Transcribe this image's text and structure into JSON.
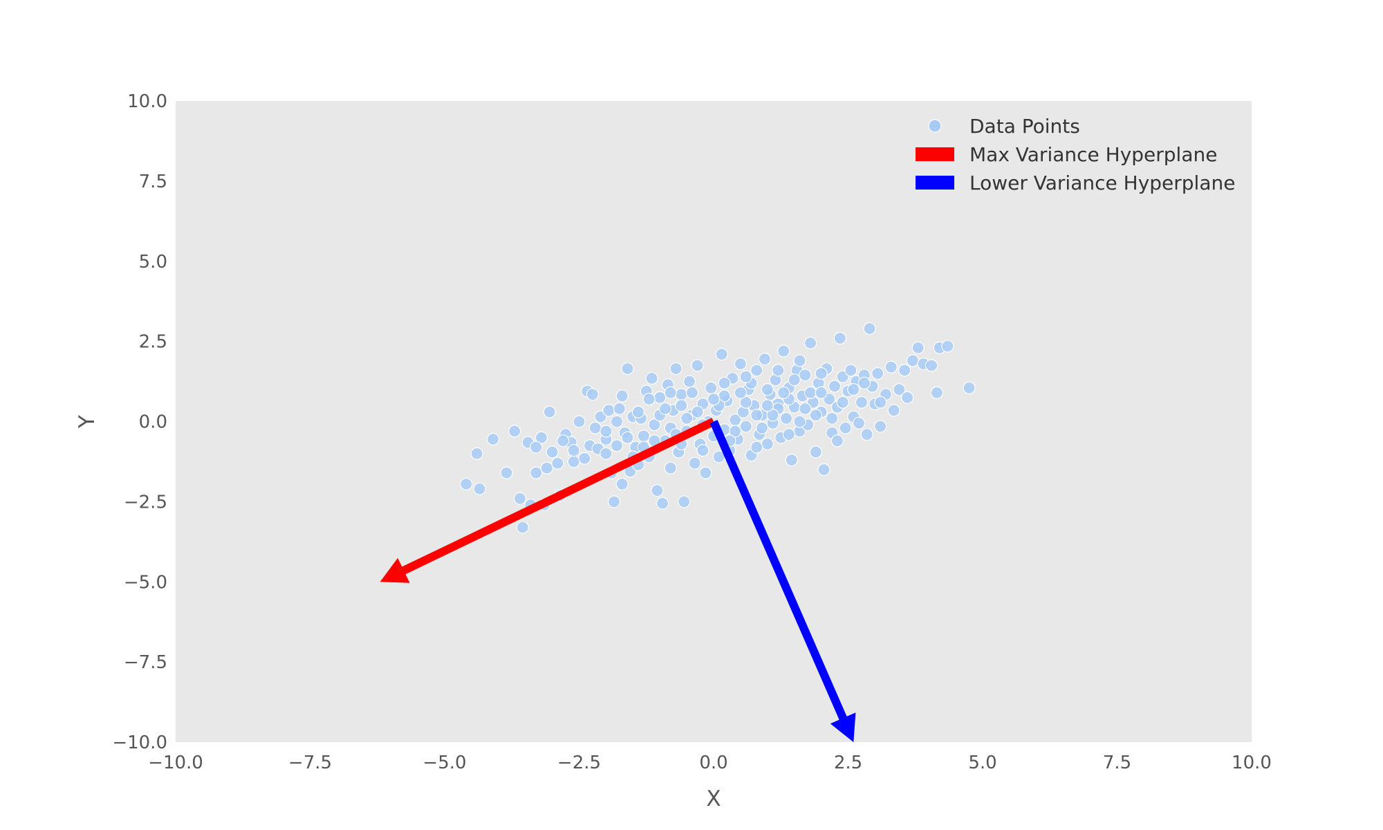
{
  "chart_data": {
    "type": "scatter",
    "title": "",
    "xlabel": "X",
    "ylabel": "Y",
    "xlim": [
      -10,
      10
    ],
    "ylim": [
      -10,
      10
    ],
    "xticks": [
      -10.0,
      -7.5,
      -5.0,
      -2.5,
      0.0,
      2.5,
      5.0,
      7.5,
      10.0
    ],
    "yticks": [
      -10.0,
      -7.5,
      -5.0,
      -2.5,
      0.0,
      2.5,
      5.0,
      7.5,
      10.0
    ],
    "xtick_labels": [
      "−10.0",
      "−7.5",
      "−5.0",
      "−2.5",
      "0.0",
      "2.5",
      "5.0",
      "7.5",
      "10.0"
    ],
    "ytick_labels": [
      "−10.0",
      "−7.5",
      "−5.0",
      "−2.5",
      "0.0",
      "2.5",
      "5.0",
      "7.5",
      "10.0"
    ],
    "grid": false,
    "background_color": "#e8e8e8",
    "legend_position": "top-right",
    "series": [
      {
        "name": "Data Points",
        "kind": "scatter",
        "color": "#a7cbf5",
        "points": [
          [
            -4.6,
            -1.95
          ],
          [
            -4.35,
            -2.1
          ],
          [
            -4.4,
            -1.0
          ],
          [
            -4.1,
            -0.55
          ],
          [
            -3.85,
            -1.6
          ],
          [
            -3.7,
            -0.3
          ],
          [
            -3.6,
            -2.4
          ],
          [
            -3.55,
            -3.3
          ],
          [
            -3.45,
            -0.65
          ],
          [
            -3.4,
            -2.6
          ],
          [
            -3.3,
            -1.6
          ],
          [
            -3.2,
            -0.5
          ],
          [
            -3.15,
            -2.6
          ],
          [
            -3.1,
            -1.45
          ],
          [
            -3.05,
            0.3
          ],
          [
            -3.0,
            -0.95
          ],
          [
            -2.9,
            -1.3
          ],
          [
            -2.85,
            -2.3
          ],
          [
            -2.75,
            -0.4
          ],
          [
            -2.65,
            -0.65
          ],
          [
            -2.6,
            -1.25
          ],
          [
            -2.5,
            0.0
          ],
          [
            -2.4,
            -1.15
          ],
          [
            -2.35,
            0.95
          ],
          [
            -2.3,
            -0.75
          ],
          [
            -2.25,
            0.85
          ],
          [
            -2.2,
            -0.2
          ],
          [
            -2.15,
            -0.85
          ],
          [
            -2.1,
            0.15
          ],
          [
            -2.0,
            -0.55
          ],
          [
            -1.95,
            0.35
          ],
          [
            -1.9,
            -1.6
          ],
          [
            -1.85,
            -2.5
          ],
          [
            -1.8,
            -0.75
          ],
          [
            -1.75,
            0.4
          ],
          [
            -1.7,
            -1.95
          ],
          [
            -1.65,
            -0.35
          ],
          [
            -1.6,
            1.65
          ],
          [
            -1.55,
            -1.55
          ],
          [
            -1.5,
            0.15
          ],
          [
            -1.45,
            -0.8
          ],
          [
            -1.4,
            -1.35
          ],
          [
            -1.35,
            0.1
          ],
          [
            -1.3,
            -0.45
          ],
          [
            -1.25,
            0.95
          ],
          [
            -1.2,
            -1.1
          ],
          [
            -1.15,
            1.35
          ],
          [
            -1.1,
            -0.1
          ],
          [
            -1.05,
            -2.15
          ],
          [
            -1.0,
            0.75
          ],
          [
            -0.95,
            -2.55
          ],
          [
            -0.9,
            -0.6
          ],
          [
            -0.85,
            1.15
          ],
          [
            -0.8,
            -1.45
          ],
          [
            -0.75,
            0.35
          ],
          [
            -0.7,
            1.65
          ],
          [
            -0.65,
            -0.95
          ],
          [
            -0.6,
            0.85
          ],
          [
            -0.55,
            -2.5
          ],
          [
            -0.5,
            -0.3
          ],
          [
            -0.45,
            1.25
          ],
          [
            -0.4,
            0.2
          ],
          [
            -0.35,
            -1.3
          ],
          [
            -0.3,
            1.75
          ],
          [
            -0.25,
            -0.7
          ],
          [
            -0.2,
            0.55
          ],
          [
            -0.15,
            -1.6
          ],
          [
            -0.1,
            0.0
          ],
          [
            -0.05,
            1.05
          ],
          [
            0.0,
            -0.45
          ],
          [
            0.05,
            0.35
          ],
          [
            0.1,
            -1.1
          ],
          [
            0.15,
            2.1
          ],
          [
            0.2,
            -0.25
          ],
          [
            0.25,
            0.65
          ],
          [
            0.3,
            -0.9
          ],
          [
            0.35,
            1.35
          ],
          [
            0.4,
            0.05
          ],
          [
            0.45,
            -0.55
          ],
          [
            0.5,
            1.8
          ],
          [
            0.55,
            0.3
          ],
          [
            0.6,
            -0.15
          ],
          [
            0.65,
            1.0
          ],
          [
            0.7,
            -1.05
          ],
          [
            0.75,
            0.5
          ],
          [
            0.8,
            1.6
          ],
          [
            0.85,
            -0.4
          ],
          [
            0.9,
            0.2
          ],
          [
            0.95,
            1.95
          ],
          [
            1.0,
            -0.7
          ],
          [
            1.05,
            0.85
          ],
          [
            1.1,
            -0.05
          ],
          [
            1.15,
            1.3
          ],
          [
            1.2,
            0.55
          ],
          [
            1.25,
            -0.5
          ],
          [
            1.3,
            2.2
          ],
          [
            1.35,
            0.1
          ],
          [
            1.4,
            1.05
          ],
          [
            1.45,
            -1.2
          ],
          [
            1.5,
            0.45
          ],
          [
            1.55,
            1.6
          ],
          [
            1.6,
            -0.3
          ],
          [
            1.65,
            0.8
          ],
          [
            1.7,
            1.45
          ],
          [
            1.75,
            -0.1
          ],
          [
            1.8,
            2.45
          ],
          [
            1.85,
            0.6
          ],
          [
            1.9,
            -0.95
          ],
          [
            1.95,
            1.2
          ],
          [
            2.0,
            0.3
          ],
          [
            2.05,
            -1.5
          ],
          [
            2.1,
            1.65
          ],
          [
            2.15,
            0.7
          ],
          [
            2.2,
            -0.35
          ],
          [
            2.25,
            1.1
          ],
          [
            2.3,
            0.45
          ],
          [
            2.35,
            2.6
          ],
          [
            2.4,
            1.4
          ],
          [
            2.45,
            -0.2
          ],
          [
            2.5,
            0.95
          ],
          [
            2.55,
            1.6
          ],
          [
            2.6,
            0.15
          ],
          [
            2.65,
            1.25
          ],
          [
            2.7,
            -0.05
          ],
          [
            2.75,
            0.6
          ],
          [
            2.8,
            1.45
          ],
          [
            2.85,
            -0.4
          ],
          [
            2.9,
            2.9
          ],
          [
            2.95,
            1.1
          ],
          [
            3.0,
            0.55
          ],
          [
            3.05,
            1.5
          ],
          [
            3.1,
            -0.15
          ],
          [
            3.2,
            0.85
          ],
          [
            3.3,
            1.7
          ],
          [
            3.35,
            0.35
          ],
          [
            3.45,
            1.0
          ],
          [
            3.55,
            1.6
          ],
          [
            3.6,
            0.75
          ],
          [
            3.7,
            1.9
          ],
          [
            3.8,
            2.3
          ],
          [
            3.9,
            1.8
          ],
          [
            4.05,
            1.75
          ],
          [
            4.15,
            0.9
          ],
          [
            4.2,
            2.3
          ],
          [
            4.35,
            2.35
          ],
          [
            4.75,
            1.05
          ],
          [
            -1.4,
            0.3
          ],
          [
            -1.2,
            0.7
          ],
          [
            -1.0,
            0.2
          ],
          [
            -0.8,
            -0.2
          ],
          [
            -0.6,
            0.5
          ],
          [
            -0.4,
            0.9
          ],
          [
            -0.2,
            -0.1
          ],
          [
            0.2,
            0.8
          ],
          [
            0.4,
            -0.3
          ],
          [
            0.6,
            0.6
          ],
          [
            0.8,
            0.2
          ],
          [
            1.0,
            1.0
          ],
          [
            1.2,
            0.4
          ],
          [
            1.4,
            0.7
          ],
          [
            1.6,
            0.0
          ],
          [
            1.8,
            0.9
          ],
          [
            -1.6,
            -0.5
          ],
          [
            -1.8,
            0.0
          ],
          [
            -2.0,
            -0.3
          ],
          [
            -0.9,
            0.4
          ],
          [
            -0.3,
            0.3
          ],
          [
            0.3,
            -0.6
          ],
          [
            0.7,
            1.2
          ],
          [
            1.1,
            0.2
          ],
          [
            1.5,
            1.3
          ],
          [
            2.0,
            0.9
          ],
          [
            2.2,
            0.1
          ],
          [
            -1.1,
            -0.6
          ],
          [
            -0.7,
            -0.4
          ],
          [
            -0.5,
            0.1
          ],
          [
            0.1,
            0.5
          ],
          [
            0.5,
            0.9
          ],
          [
            0.9,
            -0.2
          ],
          [
            1.3,
            0.9
          ],
          [
            1.7,
            0.4
          ],
          [
            2.4,
            0.6
          ],
          [
            2.6,
            1.0
          ],
          [
            -2.6,
            -0.9
          ],
          [
            -2.8,
            -0.6
          ],
          [
            -1.3,
            -0.8
          ],
          [
            -0.6,
            -0.7
          ],
          [
            0.0,
            0.7
          ],
          [
            0.6,
            1.4
          ],
          [
            1.0,
            0.5
          ],
          [
            1.4,
            -0.4
          ],
          [
            1.9,
            0.2
          ],
          [
            2.8,
            1.2
          ],
          [
            3.1,
            0.6
          ],
          [
            -3.3,
            -0.8
          ],
          [
            -2.0,
            -1.0
          ],
          [
            -1.5,
            -1.1
          ],
          [
            -0.2,
            -0.9
          ],
          [
            0.8,
            -0.8
          ],
          [
            1.2,
            1.6
          ],
          [
            2.0,
            1.5
          ],
          [
            2.3,
            -0.6
          ],
          [
            0.2,
            1.2
          ],
          [
            -0.8,
            0.9
          ],
          [
            -1.7,
            0.8
          ],
          [
            1.6,
            1.9
          ]
        ]
      },
      {
        "name": "Max Variance Hyperplane",
        "kind": "arrow",
        "color": "#ff0000",
        "start": [
          0,
          0
        ],
        "end": [
          -6.2,
          -5.0
        ]
      },
      {
        "name": "Lower Variance Hyperplane",
        "kind": "arrow",
        "color": "#0000ff",
        "start": [
          0,
          0
        ],
        "end": [
          2.6,
          -10.0
        ]
      }
    ]
  }
}
